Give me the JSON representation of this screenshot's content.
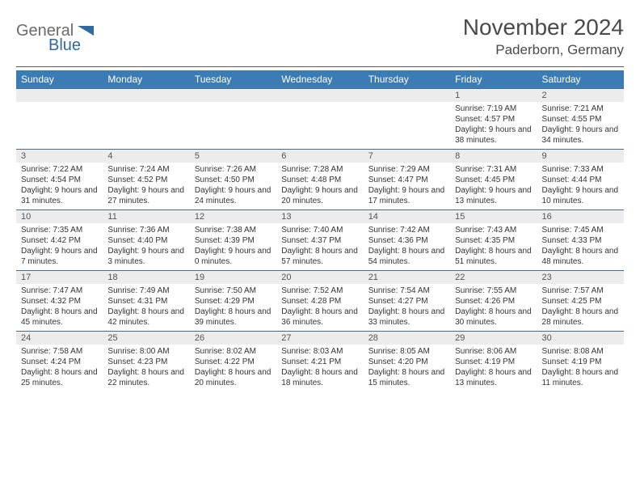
{
  "brand": {
    "word1": "General",
    "word2": "Blue",
    "word1_color": "#6b6b6b",
    "word2_color": "#2f6aa3",
    "triangle_color": "#2f6aa3"
  },
  "title": {
    "month": "November 2024",
    "location": "Paderborn, Germany"
  },
  "colors": {
    "header_bg": "#3b7cb5",
    "header_text": "#ffffff",
    "daynum_bg": "#ececec",
    "row_border": "#4a6a8a",
    "text": "#333333"
  },
  "day_headers": [
    "Sunday",
    "Monday",
    "Tuesday",
    "Wednesday",
    "Thursday",
    "Friday",
    "Saturday"
  ],
  "weeks": [
    [
      {
        "n": "",
        "sr": "",
        "ss": "",
        "dl": ""
      },
      {
        "n": "",
        "sr": "",
        "ss": "",
        "dl": ""
      },
      {
        "n": "",
        "sr": "",
        "ss": "",
        "dl": ""
      },
      {
        "n": "",
        "sr": "",
        "ss": "",
        "dl": ""
      },
      {
        "n": "",
        "sr": "",
        "ss": "",
        "dl": ""
      },
      {
        "n": "1",
        "sr": "Sunrise: 7:19 AM",
        "ss": "Sunset: 4:57 PM",
        "dl": "Daylight: 9 hours and 38 minutes."
      },
      {
        "n": "2",
        "sr": "Sunrise: 7:21 AM",
        "ss": "Sunset: 4:55 PM",
        "dl": "Daylight: 9 hours and 34 minutes."
      }
    ],
    [
      {
        "n": "3",
        "sr": "Sunrise: 7:22 AM",
        "ss": "Sunset: 4:54 PM",
        "dl": "Daylight: 9 hours and 31 minutes."
      },
      {
        "n": "4",
        "sr": "Sunrise: 7:24 AM",
        "ss": "Sunset: 4:52 PM",
        "dl": "Daylight: 9 hours and 27 minutes."
      },
      {
        "n": "5",
        "sr": "Sunrise: 7:26 AM",
        "ss": "Sunset: 4:50 PM",
        "dl": "Daylight: 9 hours and 24 minutes."
      },
      {
        "n": "6",
        "sr": "Sunrise: 7:28 AM",
        "ss": "Sunset: 4:48 PM",
        "dl": "Daylight: 9 hours and 20 minutes."
      },
      {
        "n": "7",
        "sr": "Sunrise: 7:29 AM",
        "ss": "Sunset: 4:47 PM",
        "dl": "Daylight: 9 hours and 17 minutes."
      },
      {
        "n": "8",
        "sr": "Sunrise: 7:31 AM",
        "ss": "Sunset: 4:45 PM",
        "dl": "Daylight: 9 hours and 13 minutes."
      },
      {
        "n": "9",
        "sr": "Sunrise: 7:33 AM",
        "ss": "Sunset: 4:44 PM",
        "dl": "Daylight: 9 hours and 10 minutes."
      }
    ],
    [
      {
        "n": "10",
        "sr": "Sunrise: 7:35 AM",
        "ss": "Sunset: 4:42 PM",
        "dl": "Daylight: 9 hours and 7 minutes."
      },
      {
        "n": "11",
        "sr": "Sunrise: 7:36 AM",
        "ss": "Sunset: 4:40 PM",
        "dl": "Daylight: 9 hours and 3 minutes."
      },
      {
        "n": "12",
        "sr": "Sunrise: 7:38 AM",
        "ss": "Sunset: 4:39 PM",
        "dl": "Daylight: 9 hours and 0 minutes."
      },
      {
        "n": "13",
        "sr": "Sunrise: 7:40 AM",
        "ss": "Sunset: 4:37 PM",
        "dl": "Daylight: 8 hours and 57 minutes."
      },
      {
        "n": "14",
        "sr": "Sunrise: 7:42 AM",
        "ss": "Sunset: 4:36 PM",
        "dl": "Daylight: 8 hours and 54 minutes."
      },
      {
        "n": "15",
        "sr": "Sunrise: 7:43 AM",
        "ss": "Sunset: 4:35 PM",
        "dl": "Daylight: 8 hours and 51 minutes."
      },
      {
        "n": "16",
        "sr": "Sunrise: 7:45 AM",
        "ss": "Sunset: 4:33 PM",
        "dl": "Daylight: 8 hours and 48 minutes."
      }
    ],
    [
      {
        "n": "17",
        "sr": "Sunrise: 7:47 AM",
        "ss": "Sunset: 4:32 PM",
        "dl": "Daylight: 8 hours and 45 minutes."
      },
      {
        "n": "18",
        "sr": "Sunrise: 7:49 AM",
        "ss": "Sunset: 4:31 PM",
        "dl": "Daylight: 8 hours and 42 minutes."
      },
      {
        "n": "19",
        "sr": "Sunrise: 7:50 AM",
        "ss": "Sunset: 4:29 PM",
        "dl": "Daylight: 8 hours and 39 minutes."
      },
      {
        "n": "20",
        "sr": "Sunrise: 7:52 AM",
        "ss": "Sunset: 4:28 PM",
        "dl": "Daylight: 8 hours and 36 minutes."
      },
      {
        "n": "21",
        "sr": "Sunrise: 7:54 AM",
        "ss": "Sunset: 4:27 PM",
        "dl": "Daylight: 8 hours and 33 minutes."
      },
      {
        "n": "22",
        "sr": "Sunrise: 7:55 AM",
        "ss": "Sunset: 4:26 PM",
        "dl": "Daylight: 8 hours and 30 minutes."
      },
      {
        "n": "23",
        "sr": "Sunrise: 7:57 AM",
        "ss": "Sunset: 4:25 PM",
        "dl": "Daylight: 8 hours and 28 minutes."
      }
    ],
    [
      {
        "n": "24",
        "sr": "Sunrise: 7:58 AM",
        "ss": "Sunset: 4:24 PM",
        "dl": "Daylight: 8 hours and 25 minutes."
      },
      {
        "n": "25",
        "sr": "Sunrise: 8:00 AM",
        "ss": "Sunset: 4:23 PM",
        "dl": "Daylight: 8 hours and 22 minutes."
      },
      {
        "n": "26",
        "sr": "Sunrise: 8:02 AM",
        "ss": "Sunset: 4:22 PM",
        "dl": "Daylight: 8 hours and 20 minutes."
      },
      {
        "n": "27",
        "sr": "Sunrise: 8:03 AM",
        "ss": "Sunset: 4:21 PM",
        "dl": "Daylight: 8 hours and 18 minutes."
      },
      {
        "n": "28",
        "sr": "Sunrise: 8:05 AM",
        "ss": "Sunset: 4:20 PM",
        "dl": "Daylight: 8 hours and 15 minutes."
      },
      {
        "n": "29",
        "sr": "Sunrise: 8:06 AM",
        "ss": "Sunset: 4:19 PM",
        "dl": "Daylight: 8 hours and 13 minutes."
      },
      {
        "n": "30",
        "sr": "Sunrise: 8:08 AM",
        "ss": "Sunset: 4:19 PM",
        "dl": "Daylight: 8 hours and 11 minutes."
      }
    ]
  ]
}
